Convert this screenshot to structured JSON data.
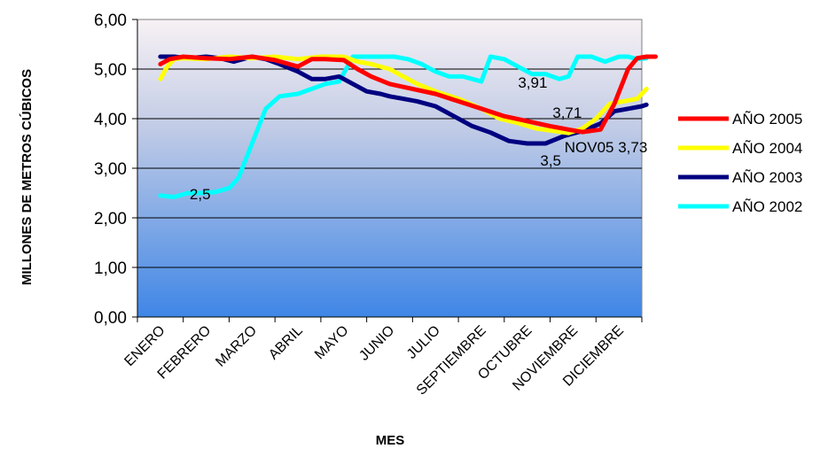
{
  "chart_data": {
    "type": "line",
    "title": "",
    "xlabel": "MES",
    "ylabel": "MILLONES DE METROS CÚBICOS",
    "ylim": [
      0,
      6
    ],
    "yticks": [
      "0,00",
      "1,00",
      "2,00",
      "3,00",
      "4,00",
      "5,00",
      "6,00"
    ],
    "categories": [
      "ENERO",
      "FEBRERO",
      "MARZO",
      "ABRIL",
      "MAYO",
      "JUNIO",
      "JULIO",
      "SEPTIEMBRE",
      "OCTUBRE",
      "NOVIEMBRE",
      "DICIEMBRE"
    ],
    "grid": true,
    "legend_position": "right",
    "series": [
      {
        "name": "AÑO 2005",
        "color": "#ff0000",
        "x": [
          0,
          0.2,
          0.5,
          1,
          1.5,
          2,
          2.5,
          3,
          3.3,
          3.6,
          4,
          4.3,
          4.6,
          5,
          5.5,
          6,
          6.5,
          7,
          7.5,
          8,
          8.5,
          8.9,
          9.2,
          9.6,
          9.9,
          10.2,
          10.4,
          10.6,
          10.8
        ],
        "values": [
          5.1,
          5.2,
          5.25,
          5.22,
          5.2,
          5.25,
          5.18,
          5.05,
          5.2,
          5.2,
          5.18,
          5.0,
          4.85,
          4.7,
          4.6,
          4.5,
          4.35,
          4.2,
          4.05,
          3.95,
          3.85,
          3.78,
          3.73,
          3.78,
          4.3,
          5.0,
          5.22,
          5.25,
          5.25
        ]
      },
      {
        "name": "AÑO 2004",
        "color": "#ffff00",
        "x": [
          0,
          0.15,
          0.3,
          0.5,
          1,
          1.5,
          2,
          2.5,
          3,
          3.5,
          4,
          4.3,
          4.6,
          5,
          5.3,
          5.6,
          6,
          6.5,
          7,
          7.4,
          7.8,
          8.2,
          8.6,
          8.9,
          9.2,
          9.5,
          9.8,
          10.1,
          10.4,
          10.6
        ],
        "values": [
          4.8,
          5.05,
          5.2,
          5.22,
          5.2,
          5.25,
          5.22,
          5.25,
          5.2,
          5.25,
          5.25,
          5.15,
          5.1,
          5.0,
          4.85,
          4.7,
          4.55,
          4.4,
          4.2,
          4.0,
          3.91,
          3.8,
          3.75,
          3.71,
          3.8,
          4.0,
          4.3,
          4.35,
          4.4,
          4.6
        ]
      },
      {
        "name": "AÑO 2003",
        "color": "#000080",
        "x": [
          0,
          0.3,
          0.6,
          1,
          1.3,
          1.6,
          2,
          2.3,
          2.6,
          3,
          3.3,
          3.6,
          3.9,
          4.2,
          4.5,
          4.8,
          5,
          5.3,
          5.6,
          6,
          6.4,
          6.8,
          7.2,
          7.6,
          8,
          8.4,
          8.8,
          9.2,
          9.6,
          9.9,
          10.2,
          10.5,
          10.6
        ],
        "values": [
          5.25,
          5.25,
          5.22,
          5.25,
          5.22,
          5.15,
          5.25,
          5.2,
          5.1,
          4.95,
          4.8,
          4.8,
          4.85,
          4.7,
          4.55,
          4.5,
          4.45,
          4.4,
          4.35,
          4.25,
          4.05,
          3.85,
          3.72,
          3.55,
          3.5,
          3.5,
          3.65,
          3.75,
          3.9,
          4.15,
          4.2,
          4.25,
          4.28
        ]
      },
      {
        "name": "AÑO 2002",
        "color": "#00ffff",
        "x": [
          0,
          0.3,
          0.6,
          0.9,
          1.2,
          1.5,
          1.7,
          2,
          2.3,
          2.6,
          3,
          3.3,
          3.6,
          3.9,
          4.2,
          4.5,
          4.8,
          5.1,
          5.4,
          5.7,
          6,
          6.3,
          6.6,
          6.8,
          7,
          7.2,
          7.5,
          7.8,
          8.1,
          8.4,
          8.7,
          8.9,
          9.1,
          9.4,
          9.7,
          10,
          10.2,
          10.4,
          10.6
        ],
        "values": [
          2.45,
          2.42,
          2.5,
          2.5,
          2.52,
          2.6,
          2.8,
          3.5,
          4.2,
          4.45,
          4.5,
          4.6,
          4.7,
          4.75,
          5.25,
          5.25,
          5.25,
          5.25,
          5.2,
          5.1,
          4.95,
          4.85,
          4.85,
          4.8,
          4.75,
          5.25,
          5.2,
          5.05,
          4.9,
          4.9,
          4.8,
          4.85,
          5.25,
          5.25,
          5.15,
          5.25,
          5.25,
          5.2,
          5.22
        ]
      }
    ],
    "annotations": [
      {
        "text": "2,5",
        "x": 0.6,
        "y": 2.5
      },
      {
        "text": "3,91",
        "x": 7.8,
        "y": 3.91
      },
      {
        "text": "3,71",
        "x": 8.9,
        "y": 3.71
      },
      {
        "text": "3,5",
        "x": 8.4,
        "y": 3.5
      },
      {
        "text": "NOV05 3,73",
        "x": 9.2,
        "y": 3.73
      }
    ]
  }
}
